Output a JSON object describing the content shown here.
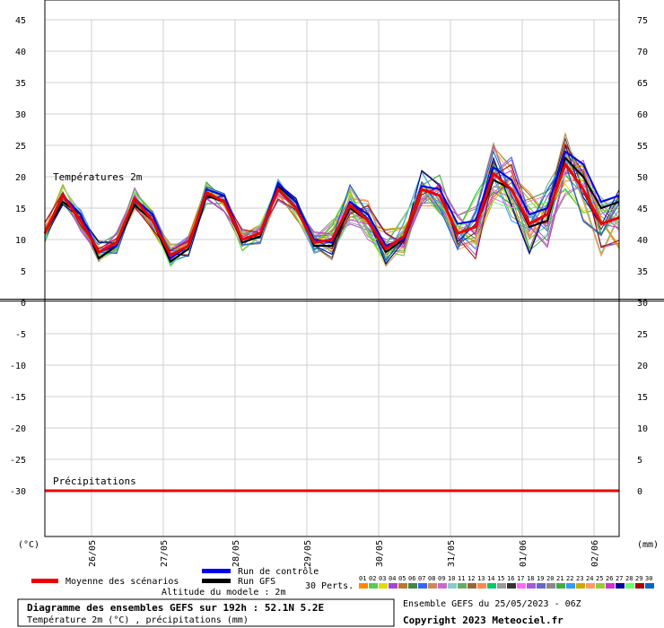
{
  "chart_data": {
    "type": "line",
    "left_unit": "(°C)",
    "right_unit": "(mm)",
    "temp_label": "Températures 2m",
    "precip_label": "Précipitations",
    "left_ticks": [
      "45",
      "40",
      "35",
      "30",
      "25",
      "20",
      "15",
      "10",
      "5",
      "0",
      "-5",
      "-10",
      "-15",
      "-20",
      "-25",
      "-30"
    ],
    "right_ticks": [
      "75",
      "70",
      "65",
      "60",
      "55",
      "50",
      "45",
      "40",
      "35",
      "30",
      "25",
      "20",
      "15",
      "10",
      "5",
      "0"
    ],
    "date_labels": [
      "26/05",
      "27/05",
      "28/05",
      "29/05",
      "30/05",
      "31/05",
      "01/06",
      "02/06"
    ],
    "mean_temperature": [
      11,
      17,
      13,
      8,
      9.5,
      16.5,
      13,
      7.5,
      9,
      17.5,
      16,
      10,
      11,
      18,
      15,
      9.5,
      10,
      15.5,
      13,
      8.5,
      10.5,
      18,
      17,
      11,
      12,
      20.5,
      18,
      12.5,
      14,
      22,
      18,
      12.5,
      13.5
    ],
    "control_temperature": [
      11,
      17,
      14,
      8,
      9,
      16.5,
      14,
      7,
      9,
      18,
      17,
      10,
      11,
      19,
      16,
      10,
      9.5,
      16,
      14,
      9,
      10,
      18.5,
      18,
      12.5,
      13,
      21.5,
      19.5,
      14,
      15,
      24,
      22,
      16,
      17
    ],
    "gfs_temperature": [
      11,
      16,
      14,
      7,
      9,
      15.5,
      13,
      6.5,
      8.5,
      17,
      16,
      9.5,
      10.5,
      18.5,
      16,
      9,
      9,
      15,
      13,
      8,
      10,
      18,
      17,
      11,
      12,
      19.5,
      18,
      12,
      13,
      23,
      20,
      15,
      16
    ],
    "mean_precipitation": [
      0,
      0,
      0,
      0,
      0,
      0,
      0,
      0,
      0,
      0,
      0,
      0,
      0,
      0,
      0,
      0,
      0,
      0,
      0,
      0,
      0,
      0,
      0,
      0,
      0,
      0,
      0,
      0,
      0,
      0,
      0,
      0,
      0
    ]
  },
  "legend": {
    "mean_label": "Moyenne des scénarios",
    "control_label": "Run de contrôle",
    "gfs_label": "Run GFS",
    "altitude_label": "Altitude du modele : 2m",
    "perts_label": "30 Perts.",
    "pert_numbers": [
      "01",
      "02",
      "03",
      "04",
      "05",
      "06",
      "07",
      "08",
      "09",
      "10",
      "11",
      "12",
      "13",
      "14",
      "15",
      "16",
      "17",
      "18",
      "19",
      "20",
      "21",
      "22",
      "23",
      "24",
      "25",
      "26",
      "27",
      "28",
      "29",
      "30"
    ],
    "pert_colors": [
      "#ff8800",
      "#55cc55",
      "#dddd00",
      "#aa44cc",
      "#bb7733",
      "#448844",
      "#3366ff",
      "#cc8855",
      "#cc66cc",
      "#88cccc",
      "#66aa66",
      "#996633",
      "#ff8844",
      "#00cc66",
      "#999999",
      "#333333",
      "#ff66ff",
      "#aa55dd",
      "#6666cc",
      "#888888",
      "#44aa44",
      "#3399ff",
      "#ccaa00",
      "#ff9966",
      "#99cc33",
      "#cc33cc",
      "#000099",
      "#66ff66",
      "#aa0000",
      "#0066cc"
    ]
  },
  "title_box": {
    "line1": "Diagramme des ensembles GEFS sur 192h : 52.1N 5.2E",
    "line2": "Température 2m (°C) , précipitations (mm)"
  },
  "ensemble_label": "Ensemble GEFS du 25/05/2023 - 06Z",
  "copyright": "Copyright 2023 Meteociel.fr"
}
